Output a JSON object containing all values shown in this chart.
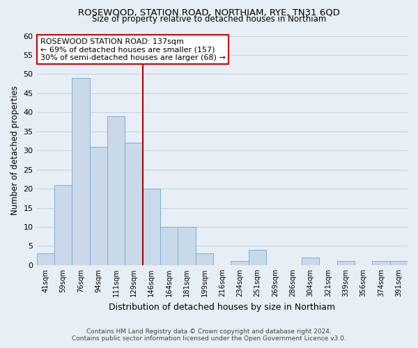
{
  "title1": "ROSEWOOD, STATION ROAD, NORTHIAM, RYE, TN31 6QD",
  "title2": "Size of property relative to detached houses in Northiam",
  "xlabel": "Distribution of detached houses by size in Northiam",
  "ylabel": "Number of detached properties",
  "bar_labels": [
    "41sqm",
    "59sqm",
    "76sqm",
    "94sqm",
    "111sqm",
    "129sqm",
    "146sqm",
    "164sqm",
    "181sqm",
    "199sqm",
    "216sqm",
    "234sqm",
    "251sqm",
    "269sqm",
    "286sqm",
    "304sqm",
    "321sqm",
    "339sqm",
    "356sqm",
    "374sqm",
    "391sqm"
  ],
  "bar_values": [
    3,
    21,
    49,
    31,
    39,
    32,
    20,
    10,
    10,
    3,
    0,
    1,
    4,
    0,
    0,
    2,
    0,
    1,
    0,
    1,
    1
  ],
  "bar_color": "#c9d9ea",
  "bar_edge_color": "#7aafd4",
  "property_label": "ROSEWOOD STATION ROAD: 137sqm",
  "annotation_line1": "← 69% of detached houses are smaller (157)",
  "annotation_line2": "30% of semi-detached houses are larger (68) →",
  "vline_color": "#aa0000",
  "vline_x_index": 5.5,
  "ylim": [
    0,
    60
  ],
  "yticks": [
    0,
    5,
    10,
    15,
    20,
    25,
    30,
    35,
    40,
    45,
    50,
    55,
    60
  ],
  "bg_color": "#e8eef5",
  "grid_color": "#c8d4e0",
  "annotation_box_color": "#ffffff",
  "annotation_box_edge": "#cc0000",
  "footer1": "Contains HM Land Registry data © Crown copyright and database right 2024.",
  "footer2": "Contains public sector information licensed under the Open Government Licence v3.0."
}
